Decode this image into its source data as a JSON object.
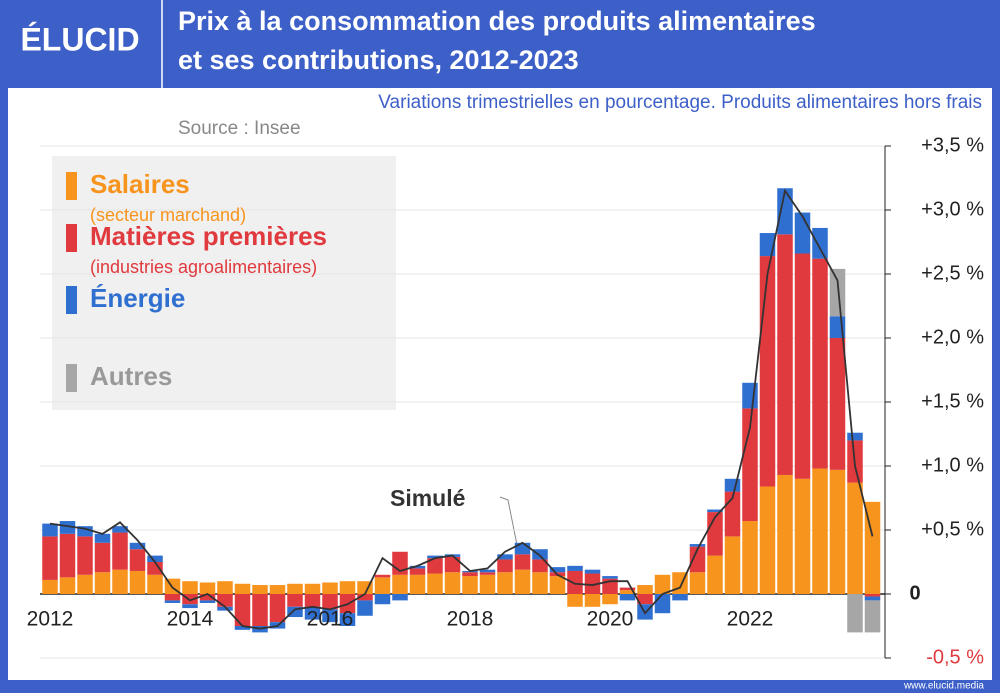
{
  "brand": "ÉLUCID",
  "footer": "www.elucid.media",
  "chart_data": {
    "type": "bar",
    "title": [
      "Prix à la consommation des produits alimentaires",
      "et ses contributions, 2012-2023"
    ],
    "subtitle": "Variations trimestrielles en pourcentage. Produits alimentaires hors frais",
    "source": "Source : Insee",
    "annotation": "Simulé",
    "categories": [
      "2012",
      null,
      null,
      null,
      null,
      null,
      null,
      null,
      "2014",
      null,
      null,
      null,
      null,
      null,
      null,
      null,
      "2016",
      null,
      null,
      null,
      null,
      null,
      null,
      null,
      "2018",
      null,
      null,
      null,
      null,
      null,
      null,
      null,
      "2020",
      null,
      null,
      null,
      null,
      null,
      null,
      null,
      "2022",
      null,
      null,
      null,
      null,
      null,
      null,
      null
    ],
    "series": [
      {
        "name": "Salaires",
        "note": "(secteur marchand)",
        "color": "#f7941d",
        "values": [
          0.11,
          0.13,
          0.15,
          0.17,
          0.19,
          0.18,
          0.15,
          0.12,
          0.1,
          0.09,
          0.1,
          0.08,
          0.07,
          0.07,
          0.08,
          0.08,
          0.09,
          0.1,
          0.1,
          0.13,
          0.15,
          0.15,
          0.16,
          0.17,
          0.14,
          0.15,
          0.17,
          0.19,
          0.17,
          0.14,
          -0.1,
          -0.1,
          -0.08,
          0.03,
          0.07,
          0.15,
          0.17,
          0.17,
          0.3,
          0.45,
          0.57,
          0.84,
          0.93,
          0.9,
          0.98,
          0.97,
          0.87,
          0.72
        ]
      },
      {
        "name": "Matières premières",
        "note": "(industries agroalimentaires)",
        "color": "#e0393e",
        "values": [
          0.34,
          0.34,
          0.3,
          0.23,
          0.29,
          0.17,
          0.1,
          -0.05,
          -0.08,
          -0.05,
          -0.1,
          -0.25,
          -0.25,
          -0.22,
          -0.1,
          -0.1,
          -0.12,
          -0.15,
          -0.05,
          0.02,
          0.18,
          0.05,
          0.12,
          0.12,
          0.03,
          0.02,
          0.1,
          0.12,
          0.1,
          0.03,
          0.18,
          0.16,
          0.12,
          0.02,
          -0.08,
          0,
          0,
          0.2,
          0.34,
          0.35,
          0.88,
          1.8,
          1.88,
          1.76,
          1.64,
          1.03,
          0.33,
          -0.02
        ]
      },
      {
        "name": "Énergie",
        "color": "#2f6fd0",
        "values": [
          0.1,
          0.1,
          0.08,
          0.07,
          0.05,
          0.05,
          0.05,
          -0.02,
          -0.03,
          -0.02,
          -0.03,
          -0.03,
          -0.05,
          -0.05,
          -0.08,
          -0.1,
          -0.1,
          -0.1,
          -0.12,
          -0.08,
          -0.05,
          0.02,
          0.02,
          0.02,
          0.01,
          0.02,
          0.04,
          0.09,
          0.08,
          0.04,
          0.04,
          0.03,
          0.02,
          -0.05,
          -0.12,
          -0.15,
          -0.05,
          0.02,
          0.02,
          0.1,
          0.2,
          0.18,
          0.36,
          0.32,
          0.24,
          0.17,
          0.06,
          -0.03
        ]
      },
      {
        "name": "Autres",
        "color": "#a6a6a6",
        "values": [
          null,
          null,
          null,
          null,
          null,
          null,
          null,
          null,
          null,
          null,
          null,
          null,
          null,
          null,
          null,
          null,
          null,
          null,
          null,
          null,
          null,
          null,
          null,
          null,
          null,
          null,
          null,
          null,
          null,
          null,
          null,
          null,
          null,
          null,
          null,
          null,
          null,
          null,
          null,
          null,
          null,
          null,
          null,
          null,
          null,
          0.37,
          -0.3,
          -0.25
        ]
      }
    ],
    "line": {
      "name": "Simulé",
      "color": "#333333",
      "values": [
        0.55,
        0.53,
        0.51,
        0.47,
        0.56,
        0.42,
        0.25,
        0.05,
        -0.05,
        0,
        -0.1,
        -0.25,
        -0.27,
        -0.25,
        -0.12,
        -0.1,
        -0.12,
        -0.08,
        0,
        0.28,
        0.18,
        0.22,
        0.28,
        0.3,
        0.18,
        0.2,
        0.33,
        0.4,
        0.3,
        0.15,
        0.08,
        0.07,
        0.1,
        0.1,
        -0.15,
        0,
        0.05,
        0.35,
        0.6,
        0.75,
        1.3,
        2.5,
        3.15,
        2.95,
        2.7,
        2.45,
        1.0,
        0.45
      ]
    },
    "ylim": [
      -0.5,
      3.5
    ],
    "yticks": [
      {
        "value": -0.5,
        "label": "-0,5 %"
      },
      0,
      {
        "value": 0.5,
        "label": "+0,5 %"
      },
      {
        "value": 1,
        "label": "+1,0 %"
      },
      {
        "value": 1.5,
        "label": "+1,5 %"
      },
      {
        "value": 2,
        "label": "+2,0 %"
      },
      {
        "value": 2.5,
        "label": "+2,5 %"
      },
      {
        "value": 3,
        "label": "+3,0 %"
      },
      {
        "value": 3.5,
        "label": "+3,5 %"
      }
    ],
    "grid": true
  }
}
